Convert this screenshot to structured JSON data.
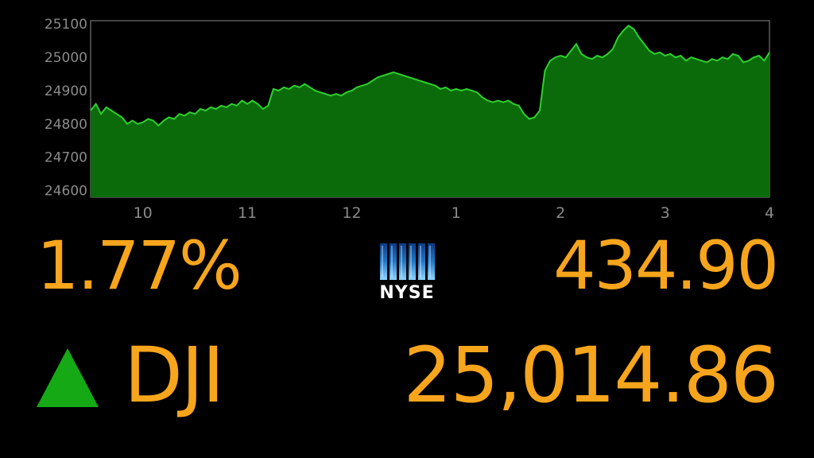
{
  "chart_data": {
    "type": "area",
    "title": "",
    "xlabel": "",
    "ylabel": "",
    "x_ticks": [
      "10",
      "11",
      "12",
      "1",
      "2",
      "3",
      "4"
    ],
    "y_ticks": [
      "24600",
      "24700",
      "24800",
      "24900",
      "25000",
      "25100"
    ],
    "ylim": [
      24580,
      25110
    ],
    "x_unit": "hours since market open (09:30)",
    "grid": false,
    "series": [
      {
        "values": [
          [
            0.0,
            24840
          ],
          [
            0.05,
            24860
          ],
          [
            0.1,
            24830
          ],
          [
            0.15,
            24850
          ],
          [
            0.2,
            24840
          ],
          [
            0.25,
            24830
          ],
          [
            0.3,
            24820
          ],
          [
            0.35,
            24800
          ],
          [
            0.4,
            24810
          ],
          [
            0.45,
            24800
          ],
          [
            0.5,
            24805
          ],
          [
            0.55,
            24815
          ],
          [
            0.6,
            24810
          ],
          [
            0.65,
            24795
          ],
          [
            0.7,
            24810
          ],
          [
            0.75,
            24820
          ],
          [
            0.8,
            24815
          ],
          [
            0.85,
            24830
          ],
          [
            0.9,
            24825
          ],
          [
            0.95,
            24835
          ],
          [
            1.0,
            24830
          ],
          [
            1.05,
            24845
          ],
          [
            1.1,
            24840
          ],
          [
            1.15,
            24850
          ],
          [
            1.2,
            24845
          ],
          [
            1.25,
            24855
          ],
          [
            1.3,
            24850
          ],
          [
            1.35,
            24860
          ],
          [
            1.4,
            24855
          ],
          [
            1.45,
            24870
          ],
          [
            1.5,
            24860
          ],
          [
            1.55,
            24870
          ],
          [
            1.6,
            24860
          ],
          [
            1.65,
            24845
          ],
          [
            1.7,
            24855
          ],
          [
            1.75,
            24905
          ],
          [
            1.8,
            24900
          ],
          [
            1.85,
            24910
          ],
          [
            1.9,
            24905
          ],
          [
            1.95,
            24915
          ],
          [
            2.0,
            24910
          ],
          [
            2.05,
            24920
          ],
          [
            2.1,
            24910
          ],
          [
            2.15,
            24900
          ],
          [
            2.2,
            24895
          ],
          [
            2.25,
            24890
          ],
          [
            2.3,
            24885
          ],
          [
            2.35,
            24890
          ],
          [
            2.4,
            24885
          ],
          [
            2.45,
            24895
          ],
          [
            2.5,
            24900
          ],
          [
            2.55,
            24910
          ],
          [
            2.6,
            24915
          ],
          [
            2.65,
            24920
          ],
          [
            2.7,
            24930
          ],
          [
            2.75,
            24940
          ],
          [
            2.8,
            24945
          ],
          [
            2.85,
            24950
          ],
          [
            2.9,
            24955
          ],
          [
            2.95,
            24950
          ],
          [
            3.0,
            24945
          ],
          [
            3.05,
            24940
          ],
          [
            3.1,
            24935
          ],
          [
            3.15,
            24930
          ],
          [
            3.2,
            24925
          ],
          [
            3.25,
            24920
          ],
          [
            3.3,
            24915
          ],
          [
            3.35,
            24905
          ],
          [
            3.4,
            24910
          ],
          [
            3.45,
            24900
          ],
          [
            3.5,
            24905
          ],
          [
            3.55,
            24900
          ],
          [
            3.6,
            24905
          ],
          [
            3.65,
            24900
          ],
          [
            3.7,
            24895
          ],
          [
            3.75,
            24880
          ],
          [
            3.8,
            24870
          ],
          [
            3.85,
            24865
          ],
          [
            3.9,
            24870
          ],
          [
            3.95,
            24865
          ],
          [
            4.0,
            24870
          ],
          [
            4.05,
            24860
          ],
          [
            4.1,
            24855
          ],
          [
            4.15,
            24830
          ],
          [
            4.2,
            24815
          ],
          [
            4.25,
            24820
          ],
          [
            4.3,
            24840
          ],
          [
            4.35,
            24960
          ],
          [
            4.4,
            24990
          ],
          [
            4.45,
            25000
          ],
          [
            4.5,
            25005
          ],
          [
            4.55,
            25000
          ],
          [
            4.6,
            25020
          ],
          [
            4.65,
            25040
          ],
          [
            4.7,
            25010
          ],
          [
            4.75,
            25000
          ],
          [
            4.8,
            24995
          ],
          [
            4.85,
            25005
          ],
          [
            4.9,
            25000
          ],
          [
            4.95,
            25010
          ],
          [
            5.0,
            25025
          ],
          [
            5.05,
            25060
          ],
          [
            5.1,
            25080
          ],
          [
            5.15,
            25095
          ],
          [
            5.2,
            25085
          ],
          [
            5.25,
            25060
          ],
          [
            5.3,
            25040
          ],
          [
            5.35,
            25020
          ],
          [
            5.4,
            25010
          ],
          [
            5.45,
            25015
          ],
          [
            5.5,
            25005
          ],
          [
            5.55,
            25010
          ],
          [
            5.6,
            25000
          ],
          [
            5.65,
            25005
          ],
          [
            5.7,
            24990
          ],
          [
            5.75,
            25000
          ],
          [
            5.8,
            24995
          ],
          [
            5.85,
            24990
          ],
          [
            5.9,
            24985
          ],
          [
            5.95,
            24995
          ],
          [
            6.0,
            24990
          ],
          [
            6.05,
            25000
          ],
          [
            6.1,
            24995
          ],
          [
            6.15,
            25010
          ],
          [
            6.2,
            25005
          ],
          [
            6.25,
            24985
          ],
          [
            6.3,
            24990
          ],
          [
            6.35,
            25000
          ],
          [
            6.4,
            25005
          ],
          [
            6.45,
            24990
          ],
          [
            6.5,
            25015
          ]
        ]
      }
    ]
  },
  "ticker": {
    "percent_change": "1.77%",
    "points_change": "434.90",
    "symbol": "DJI",
    "level": "25,014.86",
    "direction": "up",
    "exchange_logo_text": "NYSE"
  },
  "colors": {
    "accent": "#f7a51c",
    "area_fill": "#0b6b0b",
    "line": "#2fcf2f",
    "up_arrow": "#15a915",
    "axis_label": "#8a8a8a",
    "plot_border": "#8a8a8a",
    "background": "#000000"
  }
}
